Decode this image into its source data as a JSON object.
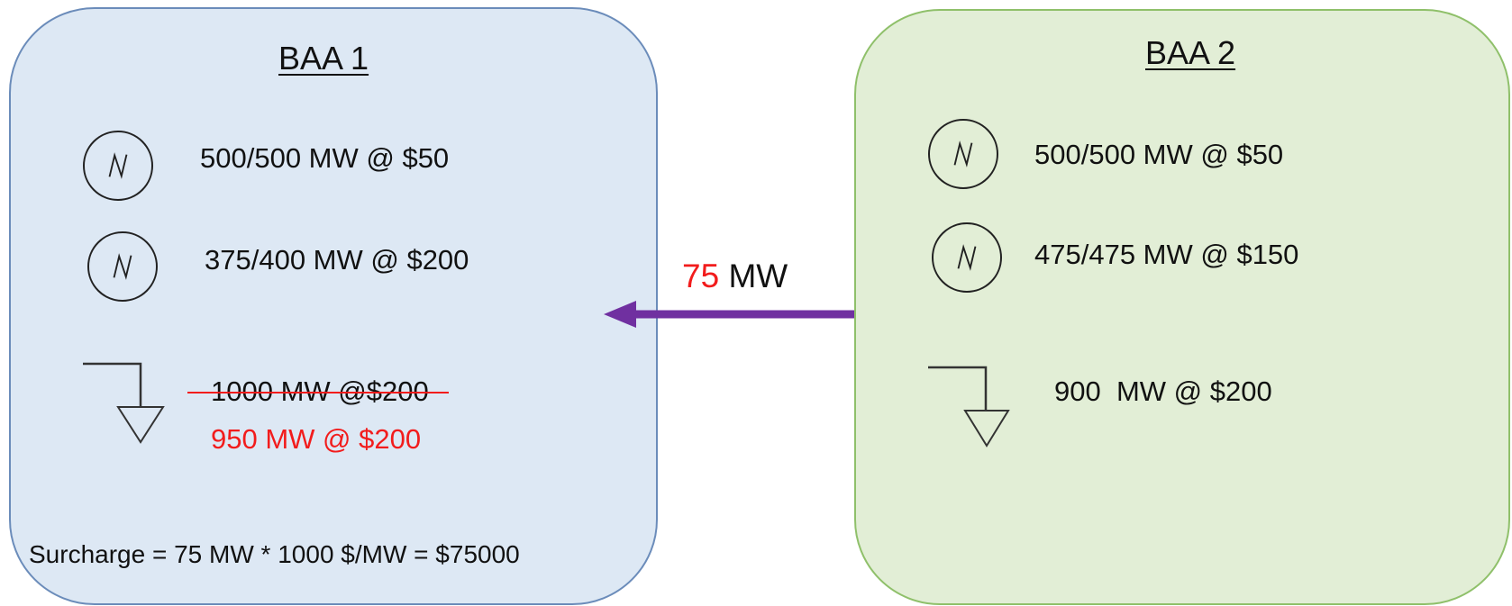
{
  "baa1": {
    "title": "BAA 1",
    "generators": [
      {
        "label": "500/500 MW @ $50"
      },
      {
        "label": "375/400 MW @ $200"
      }
    ],
    "load": {
      "original_label": "1000 MW @$200",
      "revised_label": "950 MW @ $200"
    },
    "surcharge": "Surcharge = 75 MW * 1000 $/MW = $75000"
  },
  "baa2": {
    "title": "BAA 2",
    "generators": [
      {
        "label": "500/500 MW @ $50"
      },
      {
        "label": "475/475 MW @ $150"
      }
    ],
    "load": {
      "label": "900  MW @ $200"
    }
  },
  "transfer": {
    "amount": "75",
    "unit": "MW",
    "arrow_color": "#7030a0"
  },
  "colors": {
    "baa1_fill": "#dde8f4",
    "baa2_fill": "#e2eed6",
    "highlight_red": "#f21c1c"
  }
}
